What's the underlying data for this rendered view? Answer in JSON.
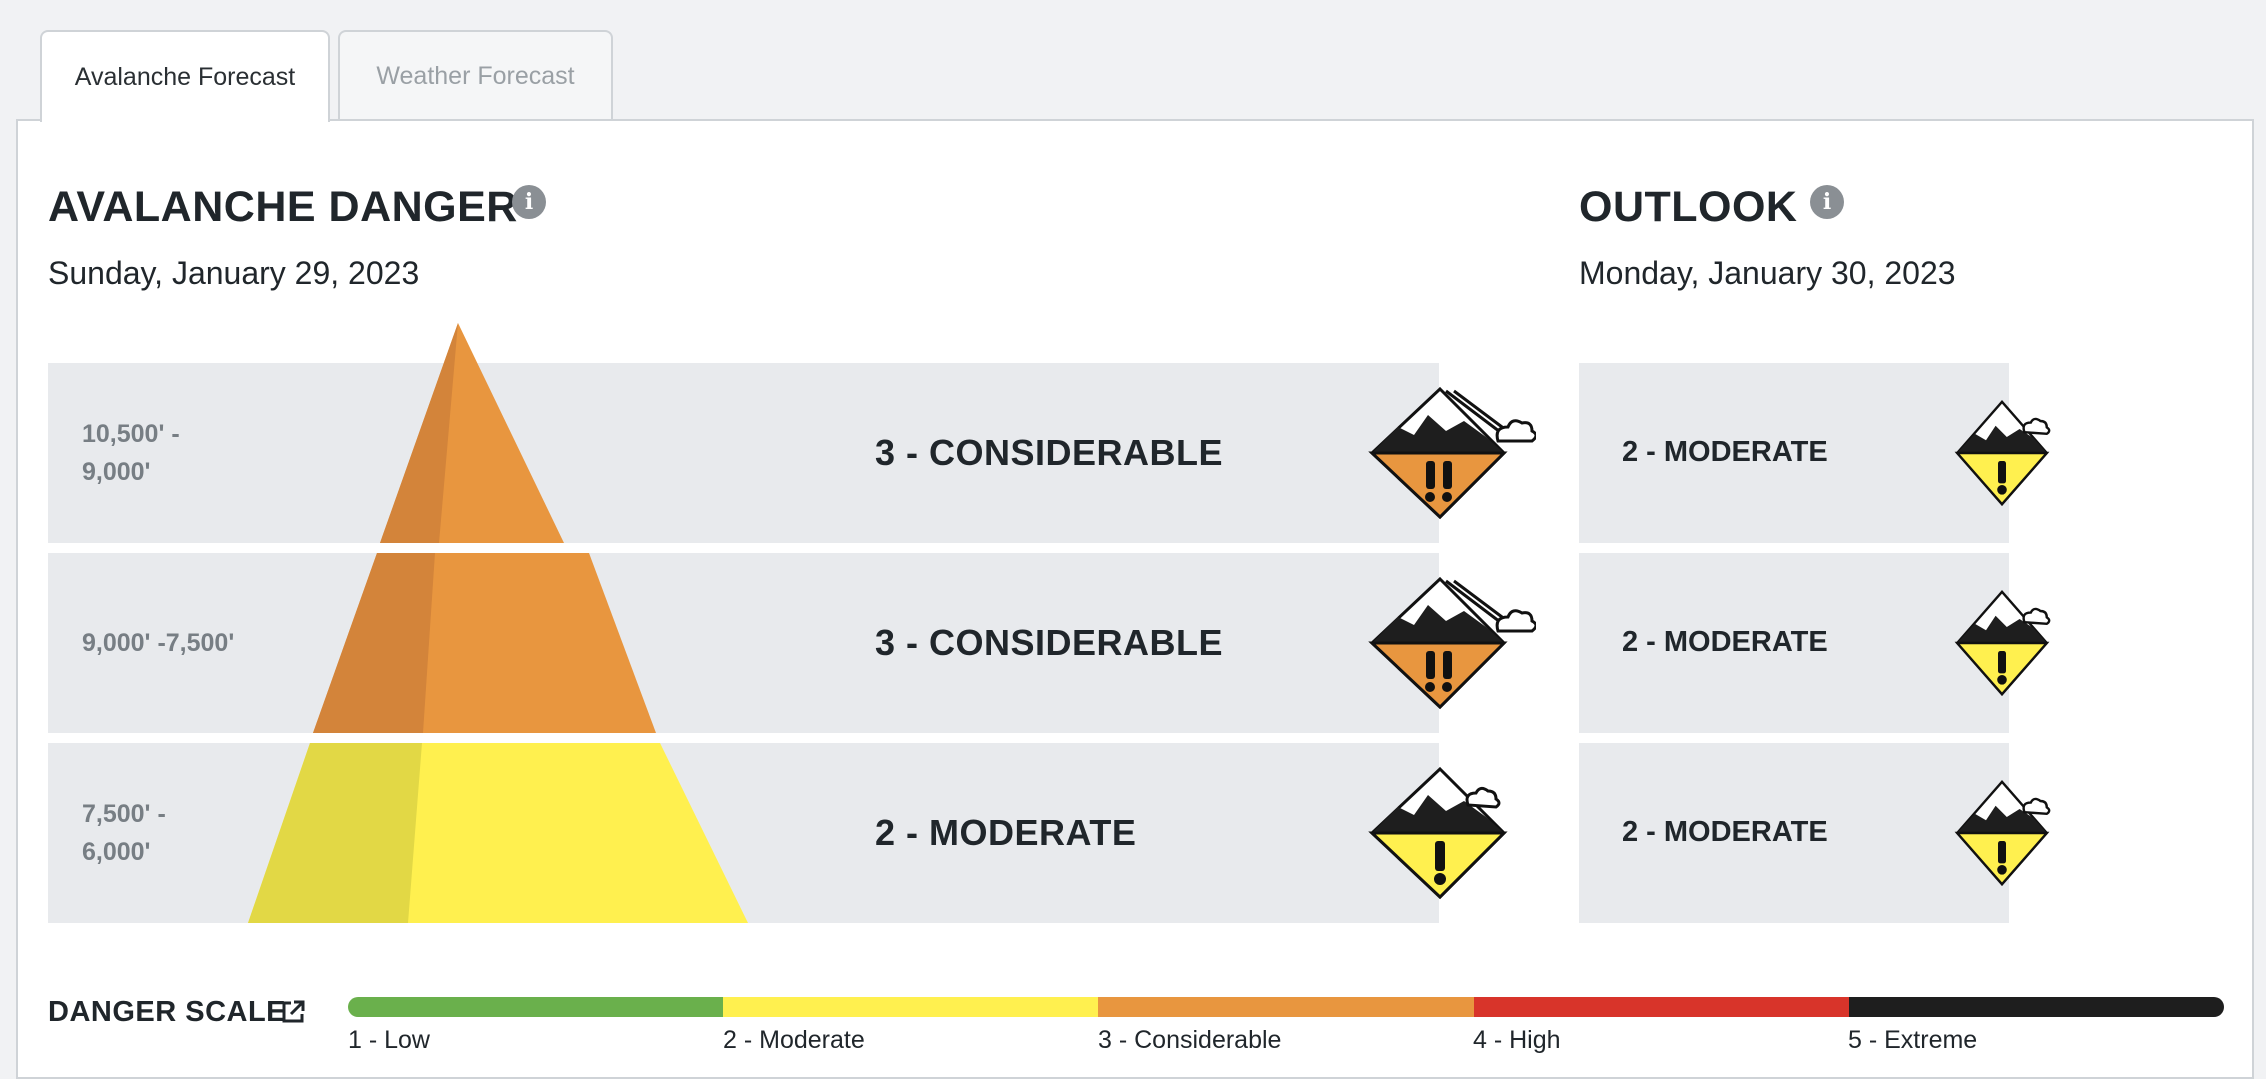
{
  "tabs": [
    {
      "label": "Avalanche Forecast",
      "active": true
    },
    {
      "label": "Weather Forecast",
      "active": false
    }
  ],
  "danger": {
    "title": "AVALANCHE DANGER",
    "date": "Sunday, January 29, 2023",
    "rows": [
      {
        "elevation_line1": "10,500' -",
        "elevation_line2": "9,000'",
        "rating": "3 - CONSIDERABLE",
        "level": 3
      },
      {
        "elevation_line1": "9,000' -7,500'",
        "elevation_line2": "",
        "rating": "3 - CONSIDERABLE",
        "level": 3
      },
      {
        "elevation_line1": "7,500' -",
        "elevation_line2": "6,000'",
        "rating": "2 - MODERATE",
        "level": 2
      }
    ]
  },
  "outlook": {
    "title": "OUTLOOK",
    "date": "Monday, January 30, 2023",
    "rows": [
      {
        "rating": "2 - MODERATE",
        "level": 2
      },
      {
        "rating": "2 - MODERATE",
        "level": 2
      },
      {
        "rating": "2 - MODERATE",
        "level": 2
      }
    ]
  },
  "scale": {
    "title": "DANGER SCALE",
    "levels": [
      {
        "label": "1 - Low",
        "color": "#6ab04c"
      },
      {
        "label": "2 - Moderate",
        "color": "#fff04f"
      },
      {
        "label": "3 - Considerable",
        "color": "#e8963f"
      },
      {
        "label": "4 - High",
        "color": "#d8342a"
      },
      {
        "label": "5 - Extreme",
        "color": "#1e1e1e"
      }
    ]
  },
  "colors": {
    "considerable": "#e8963f",
    "considerable_shade": "#d3843a",
    "moderate": "#fff04f",
    "moderate_shade": "#e2d845",
    "band_bg": "#e8eaed"
  },
  "icons": {
    "info": "info-icon",
    "external_link": "external-link-icon",
    "danger_considerable": "danger-considerable-icon",
    "danger_moderate": "danger-moderate-icon"
  }
}
